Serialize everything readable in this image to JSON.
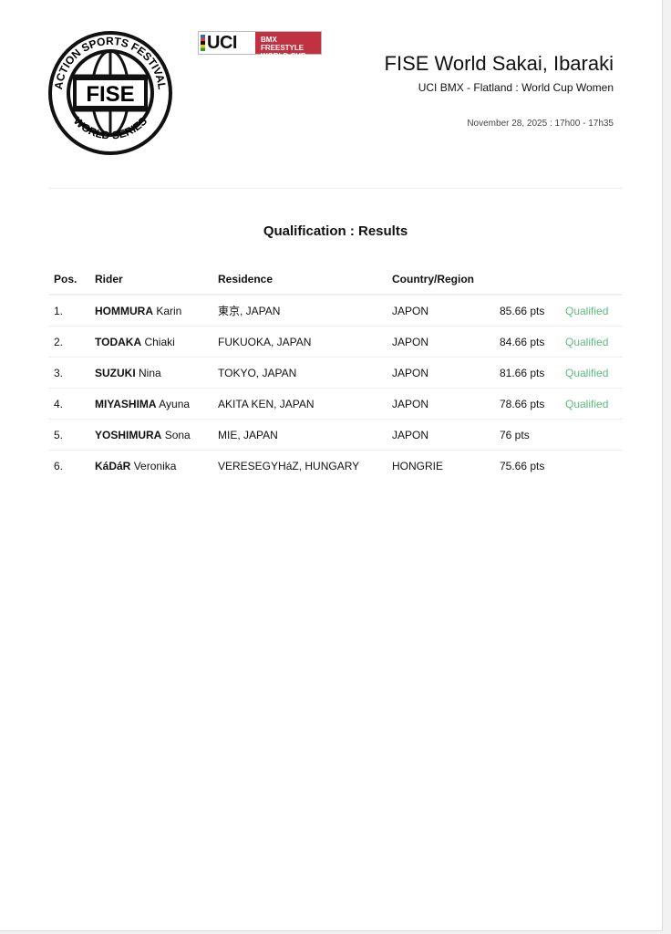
{
  "logos": {
    "fise": "ACTION SPORTS FESTIVAL FISE WORLD SERIES",
    "uci_mark": "UCI",
    "uci_text": [
      "BMX FREESTYLE",
      "WORLD CUP"
    ]
  },
  "header": {
    "title": "FISE World Sakai, Ibaraki",
    "subtitle": "UCI BMX - Flatland : World Cup Women",
    "date": "November 28, 2025 : 17h00 - 17h35"
  },
  "section_title": "Qualification : Results",
  "table": {
    "columns": [
      "Pos.",
      "Rider",
      "Residence",
      "Country/Region"
    ],
    "rows": [
      {
        "pos": "1.",
        "last": "HOMMURA",
        "first": "Karin",
        "residence": "東京, JAPAN",
        "country": "JAPON",
        "score": "85.66 pts",
        "status": "Qualified"
      },
      {
        "pos": "2.",
        "last": "TODAKA",
        "first": "Chiaki",
        "residence": "FUKUOKA, JAPAN",
        "country": "JAPON",
        "score": "84.66 pts",
        "status": "Qualified"
      },
      {
        "pos": "3.",
        "last": "SUZUKI",
        "first": "Nina",
        "residence": "TOKYO, JAPAN",
        "country": "JAPON",
        "score": "81.66 pts",
        "status": "Qualified"
      },
      {
        "pos": "4.",
        "last": "MIYASHIMA",
        "first": "Ayuna",
        "residence": "AKITA KEN, JAPAN",
        "country": "JAPON",
        "score": "78.66 pts",
        "status": "Qualified"
      },
      {
        "pos": "5.",
        "last": "YOSHIMURA",
        "first": "Sona",
        "residence": "MIE, JAPAN",
        "country": "JAPON",
        "score": "76 pts",
        "status": ""
      },
      {
        "pos": "6.",
        "last": "KáDáR",
        "first": "Veronika",
        "residence": "VERESEGYHáZ, HUNGARY",
        "country": "HONGRIE",
        "score": "75.66 pts",
        "status": ""
      }
    ]
  },
  "colors": {
    "qualified": "#5dbb7d",
    "uci_red": "#c0323f"
  }
}
